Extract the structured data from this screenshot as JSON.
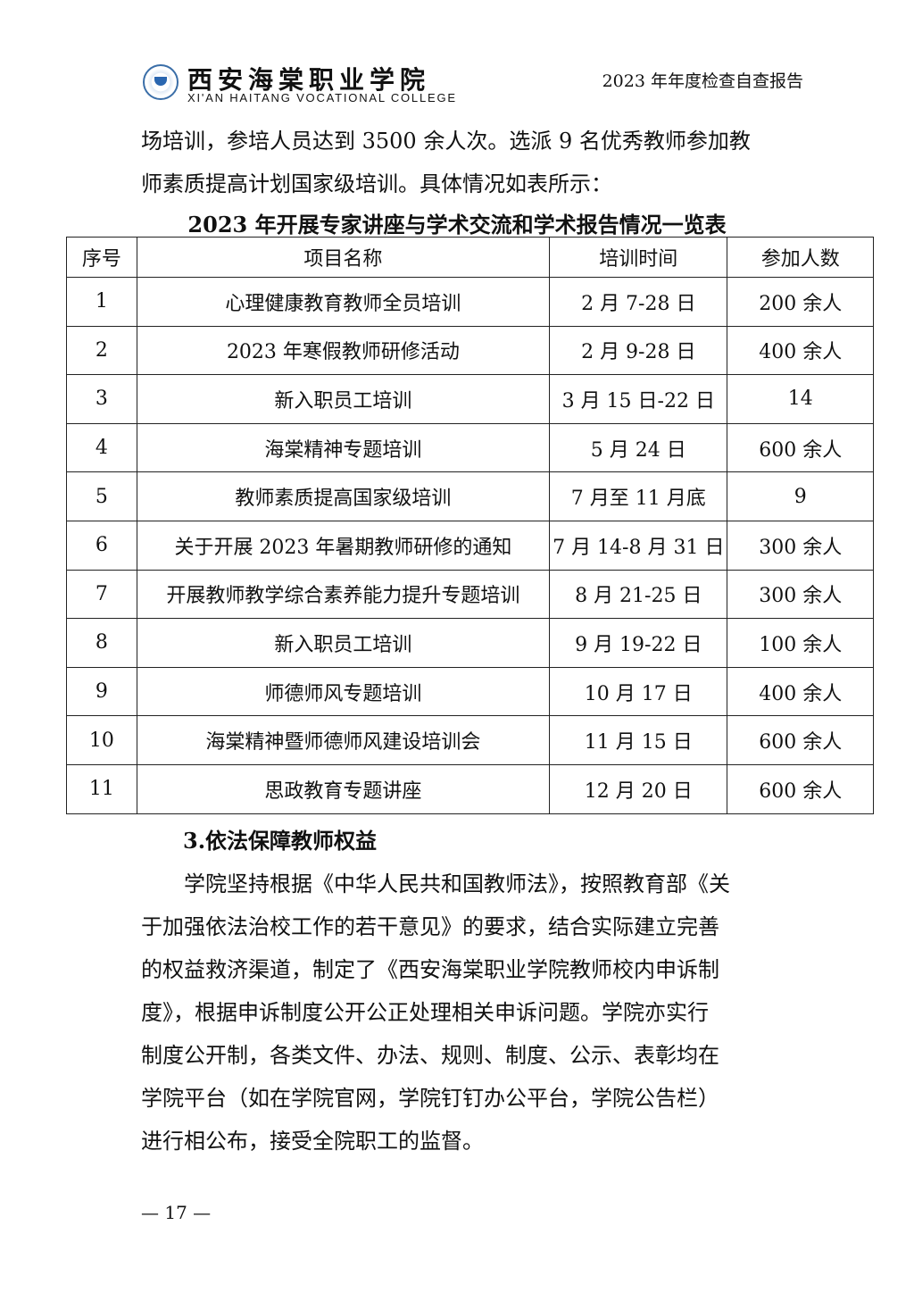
{
  "header": {
    "brand_cn": "西安海棠职业学院",
    "brand_en": "XI'AN HAITANG VOCATIONAL COLLEGE",
    "doc_title": "2023 年年度检查自查报告"
  },
  "intro_lines": [
    "场培训，参培人员达到 3500 余人次。选派 9 名优秀教师参加教",
    "师素质提高计划国家级培训。具体情况如表所示："
  ],
  "table": {
    "title": "2023 年开展专家讲座与学术交流和学术报告情况一览表",
    "headers": [
      "序号",
      "项目名称",
      "培训时间",
      "参加人数"
    ],
    "rows": [
      [
        "1",
        "心理健康教育教师全员培训",
        "2 月 7-28 日",
        "200 余人"
      ],
      [
        "2",
        "2023 年寒假教师研修活动",
        "2 月 9-28 日",
        "400 余人"
      ],
      [
        "3",
        "新入职员工培训",
        "3 月 15 日-22 日",
        "14"
      ],
      [
        "4",
        "海棠精神专题培训",
        "5 月 24 日",
        "600 余人"
      ],
      [
        "5",
        "教师素质提高国家级培训",
        "7 月至 11 月底",
        "9"
      ],
      [
        "6",
        "关于开展 2023 年暑期教师研修的通知",
        "7 月 14-8 月 31 日",
        "300 余人"
      ],
      [
        "7",
        "开展教师教学综合素养能力提升专题培训",
        "8 月 21-25 日",
        "300 余人"
      ],
      [
        "8",
        "新入职员工培训",
        "9 月 19-22 日",
        "100 余人"
      ],
      [
        "9",
        "师德师风专题培训",
        "10 月 17 日",
        "400 余人"
      ],
      [
        "10",
        "海棠精神暨师德师风建设培训会",
        "11 月 15 日",
        "600 余人"
      ],
      [
        "11",
        "思政教育专题讲座",
        "12 月 20 日",
        "600 余人"
      ]
    ]
  },
  "section_heading": "3.依法保障教师权益",
  "body_lines": [
    "　　学院坚持根据《中华人民共和国教师法》，按照教育部《关",
    "于加强依法治校工作的若干意见》的要求，结合实际建立完善",
    "的权益救济渠道，制定了《西安海棠职业学院教师校内申诉制",
    "度》，根据申诉制度公开公正处理相关申诉问题。学院亦实行",
    "制度公开制，各类文件、办法、规则、制度、公示、表彰均在",
    "学院平台（如在学院官网，学院钉钉办公平台，学院公告栏）",
    "进行相公布，接受全院职工的监督。"
  ],
  "page_number": "— 17 —"
}
